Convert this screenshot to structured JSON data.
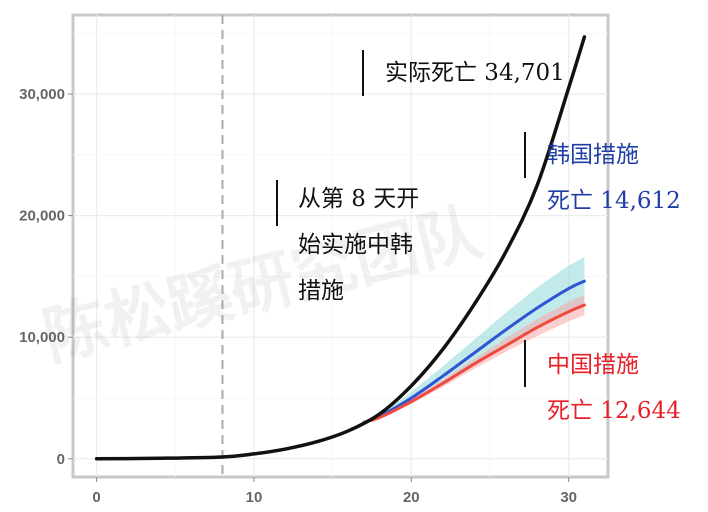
{
  "chart_data": {
    "type": "line",
    "title": "",
    "xlabel": "",
    "ylabel": "",
    "xlim": [
      -1.5,
      32.5
    ],
    "ylim": [
      -1500,
      36500
    ],
    "xticks": [
      0,
      10,
      20,
      30
    ],
    "xtick_labels": [
      "0",
      "10",
      "20",
      "30"
    ],
    "yticks": [
      0,
      10000,
      20000,
      30000
    ],
    "ytick_labels": [
      "0",
      "10,000",
      "20,000",
      "30,000"
    ],
    "grid": true,
    "intervention_day": 8,
    "series": [
      {
        "key": "actual",
        "color": "#111111",
        "x": [
          0,
          4,
          8,
          10,
          12,
          14,
          16,
          18,
          20,
          22,
          24,
          26,
          28,
          30,
          31
        ],
        "y": [
          0,
          40,
          150,
          400,
          800,
          1400,
          2300,
          3700,
          6000,
          9000,
          12700,
          17000,
          22500,
          30500,
          34701
        ]
      },
      {
        "key": "korea",
        "color": "#2f55d4",
        "band_color": "#8fd8d8",
        "x": [
          17,
          18,
          20,
          22,
          24,
          26,
          28,
          30,
          31
        ],
        "y": [
          3000,
          3500,
          5000,
          6800,
          8700,
          10600,
          12400,
          14000,
          14612
        ],
        "lower": [
          3000,
          3400,
          4600,
          6100,
          7700,
          9300,
          10900,
          12300,
          12800
        ],
        "upper": [
          3000,
          3600,
          5500,
          7600,
          9800,
          12000,
          14100,
          15900,
          16600
        ]
      },
      {
        "key": "china",
        "color": "#ee4b3f",
        "band_color": "#f7a8a8",
        "x": [
          17,
          18,
          20,
          22,
          24,
          26,
          28,
          30,
          31
        ],
        "y": [
          3000,
          3400,
          4700,
          6200,
          7800,
          9300,
          10800,
          12100,
          12644
        ],
        "lower": [
          3000,
          3350,
          4500,
          5900,
          7400,
          8800,
          10100,
          11300,
          11800
        ],
        "upper": [
          3000,
          3450,
          4900,
          6500,
          8200,
          9900,
          11500,
          12900,
          13500
        ]
      }
    ],
    "annotations": {
      "actual": "实际死亡 34,701",
      "korea_line1": "韩国措施",
      "korea_line2": "死亡 14,612",
      "china_line1": "中国措施",
      "china_line2": "死亡 12,644",
      "intervention_line1": "从第 8 天开",
      "intervention_line2": "始实施中韩",
      "intervention_line3": "措施"
    },
    "colors": {
      "korea_text": "#1f3fa6",
      "china_text": "#e8202a"
    },
    "watermark": "陈松蹊研究团队"
  }
}
